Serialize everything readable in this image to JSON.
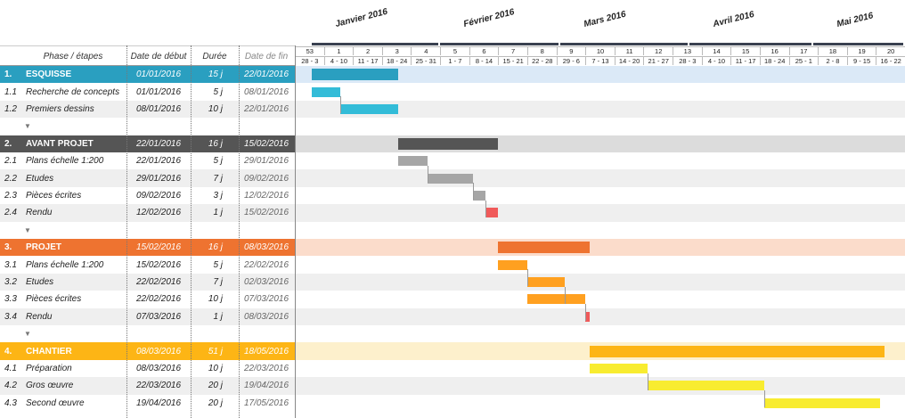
{
  "chart_data": {
    "type": "gantt",
    "table_headers": {
      "phase": "Phase / étapes",
      "start": "Date de début",
      "duration": "Durée",
      "end": "Date de fin"
    },
    "months": [
      {
        "label": "Janvier 2016",
        "start": "2016-01-01",
        "end": "2016-01-31"
      },
      {
        "label": "Février 2016",
        "start": "2016-02-01",
        "end": "2016-02-29"
      },
      {
        "label": "Mars 2016",
        "start": "2016-03-01",
        "end": "2016-03-31"
      },
      {
        "label": "Avril 2016",
        "start": "2016-04-01",
        "end": "2016-04-30"
      },
      {
        "label": "Mai 2016",
        "start": "2016-05-01",
        "end": "2016-05-31"
      }
    ],
    "weeks": [
      {
        "num": "53",
        "range": "28 - 3"
      },
      {
        "num": "1",
        "range": "4 - 10"
      },
      {
        "num": "2",
        "range": "11 - 17"
      },
      {
        "num": "3",
        "range": "18 - 24"
      },
      {
        "num": "4",
        "range": "25 - 31"
      },
      {
        "num": "5",
        "range": "1 - 7"
      },
      {
        "num": "6",
        "range": "8 - 14"
      },
      {
        "num": "7",
        "range": "15 - 21"
      },
      {
        "num": "8",
        "range": "22 - 28"
      },
      {
        "num": "9",
        "range": "29 - 6"
      },
      {
        "num": "10",
        "range": "7 - 13"
      },
      {
        "num": "11",
        "range": "14 - 20"
      },
      {
        "num": "12",
        "range": "21 - 27"
      },
      {
        "num": "13",
        "range": "28 - 3"
      },
      {
        "num": "14",
        "range": "4 - 10"
      },
      {
        "num": "15",
        "range": "11 - 17"
      },
      {
        "num": "16",
        "range": "18 - 24"
      },
      {
        "num": "17",
        "range": "25 - 1"
      },
      {
        "num": "18",
        "range": "2 - 8"
      },
      {
        "num": "19",
        "range": "9 - 15"
      },
      {
        "num": "20",
        "range": "16 - 22"
      }
    ],
    "rows": [
      {
        "type": "phase",
        "id": "1.",
        "name": "ESQUISSE",
        "start": "01/01/2016",
        "duration": "15 j",
        "end": "22/01/2016",
        "start_iso": "2016-01-01",
        "end_iso": "2016-01-22",
        "color": "#2a9fc0",
        "band": "#dbe9f7"
      },
      {
        "type": "task",
        "id": "1.1",
        "name": "Recherche de concepts",
        "start": "01/01/2016",
        "duration": "5 j",
        "end": "08/01/2016",
        "start_iso": "2016-01-01",
        "end_iso": "2016-01-08",
        "color": "#33bcd8"
      },
      {
        "type": "task",
        "id": "1.2",
        "name": "Premiers dessins",
        "start": "08/01/2016",
        "duration": "10 j",
        "end": "22/01/2016",
        "start_iso": "2016-01-08",
        "end_iso": "2016-01-22",
        "color": "#33bcd8"
      },
      {
        "type": "spacer",
        "arrow": "▼"
      },
      {
        "type": "phase",
        "id": "2.",
        "name": "AVANT PROJET",
        "start": "22/01/2016",
        "duration": "16 j",
        "end": "15/02/2016",
        "start_iso": "2016-01-22",
        "end_iso": "2016-02-15",
        "color": "#555555",
        "band": "#dcdcdc"
      },
      {
        "type": "task",
        "id": "2.1",
        "name": "Plans échelle 1:200",
        "start": "22/01/2016",
        "duration": "5 j",
        "end": "29/01/2016",
        "start_iso": "2016-01-22",
        "end_iso": "2016-01-29",
        "color": "#a6a6a6"
      },
      {
        "type": "task",
        "id": "2.2",
        "name": "Etudes",
        "start": "29/01/2016",
        "duration": "7 j",
        "end": "09/02/2016",
        "start_iso": "2016-01-29",
        "end_iso": "2016-02-09",
        "color": "#a6a6a6"
      },
      {
        "type": "task",
        "id": "2.3",
        "name": "Pièces écrites",
        "start": "09/02/2016",
        "duration": "3 j",
        "end": "12/02/2016",
        "start_iso": "2016-02-09",
        "end_iso": "2016-02-12",
        "color": "#a6a6a6"
      },
      {
        "type": "task",
        "id": "2.4",
        "name": "Rendu",
        "start": "12/02/2016",
        "duration": "1 j",
        "end": "15/02/2016",
        "start_iso": "2016-02-12",
        "end_iso": "2016-02-15",
        "color": "#f05a5a"
      },
      {
        "type": "spacer",
        "arrow": "▼"
      },
      {
        "type": "phase",
        "id": "3.",
        "name": "PROJET",
        "start": "15/02/2016",
        "duration": "16 j",
        "end": "08/03/2016",
        "start_iso": "2016-02-15",
        "end_iso": "2016-03-08",
        "color": "#ee7330",
        "band": "#fbdccb"
      },
      {
        "type": "task",
        "id": "3.1",
        "name": "Plans échelle 1:200",
        "start": "15/02/2016",
        "duration": "5 j",
        "end": "22/02/2016",
        "start_iso": "2016-02-15",
        "end_iso": "2016-02-22",
        "color": "#ffa020"
      },
      {
        "type": "task",
        "id": "3.2",
        "name": "Etudes",
        "start": "22/02/2016",
        "duration": "7 j",
        "end": "02/03/2016",
        "start_iso": "2016-02-22",
        "end_iso": "2016-03-02",
        "color": "#ffa020"
      },
      {
        "type": "task",
        "id": "3.3",
        "name": "Pièces écrites",
        "start": "22/02/2016",
        "duration": "10 j",
        "end": "07/03/2016",
        "start_iso": "2016-02-22",
        "end_iso": "2016-03-07",
        "color": "#ffa020"
      },
      {
        "type": "task",
        "id": "3.4",
        "name": "Rendu",
        "start": "07/03/2016",
        "duration": "1 j",
        "end": "08/03/2016",
        "start_iso": "2016-03-07",
        "end_iso": "2016-03-08",
        "color": "#f05a5a"
      },
      {
        "type": "spacer",
        "arrow": "▼"
      },
      {
        "type": "phase",
        "id": "4.",
        "name": "CHANTIER",
        "start": "08/03/2016",
        "duration": "51 j",
        "end": "18/05/2016",
        "start_iso": "2016-03-08",
        "end_iso": "2016-05-18",
        "color": "#fdb515",
        "band": "#fdf0cc"
      },
      {
        "type": "task",
        "id": "4.1",
        "name": "Préparation",
        "start": "08/03/2016",
        "duration": "10 j",
        "end": "22/03/2016",
        "start_iso": "2016-03-08",
        "end_iso": "2016-03-22",
        "color": "#f8ec30"
      },
      {
        "type": "task",
        "id": "4.2",
        "name": "Gros œuvre",
        "start": "22/03/2016",
        "duration": "20 j",
        "end": "19/04/2016",
        "start_iso": "2016-03-22",
        "end_iso": "2016-04-19",
        "color": "#f8ec30"
      },
      {
        "type": "task",
        "id": "4.3",
        "name": "Second œuvre",
        "start": "19/04/2016",
        "duration": "20 j",
        "end": "17/05/2016",
        "start_iso": "2016-04-19",
        "end_iso": "2016-05-17",
        "color": "#f8ec30"
      }
    ]
  }
}
